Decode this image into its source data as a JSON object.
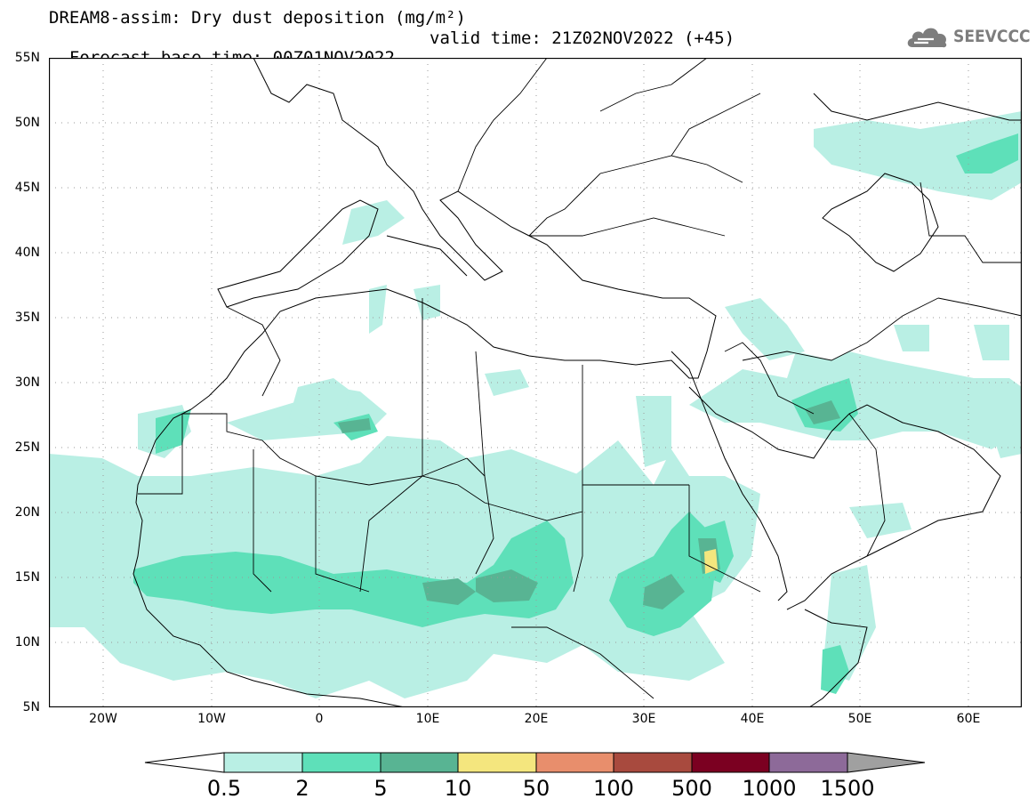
{
  "header": {
    "title_line1": "DREAM8-assim: Dry dust deposition (mg/m²)",
    "title_line2_base": "Forecast base time: 00Z01NOV2022",
    "title_line2_valid": "valid time: 21Z02NOV2022 (+45)",
    "logo_text": "SEEVCCC"
  },
  "map": {
    "lat_ticks": [
      "55N",
      "50N",
      "45N",
      "40N",
      "35N",
      "30N",
      "25N",
      "20N",
      "15N",
      "10N",
      "5N"
    ],
    "lon_ticks": [
      "20W",
      "10W",
      "0",
      "10E",
      "20E",
      "30E",
      "40E",
      "50E",
      "60E"
    ],
    "fill_colors": [
      "#b9efe4",
      "#5ee0b9",
      "#58b493",
      "#f4e67e",
      "#e88e6c",
      "#a84a3e",
      "#7b0021",
      "#8d6a99",
      "#a0a0a0"
    ]
  },
  "colorbar": {
    "labels": [
      "0.5",
      "2",
      "5",
      "10",
      "50",
      "100",
      "500",
      "1000",
      "1500"
    ],
    "colors": [
      "#b9efe4",
      "#5ee0b9",
      "#58b493",
      "#f4e67e",
      "#e88e6c",
      "#a84a3e",
      "#7b0021",
      "#8d6a99",
      "#a0a0a0"
    ]
  }
}
